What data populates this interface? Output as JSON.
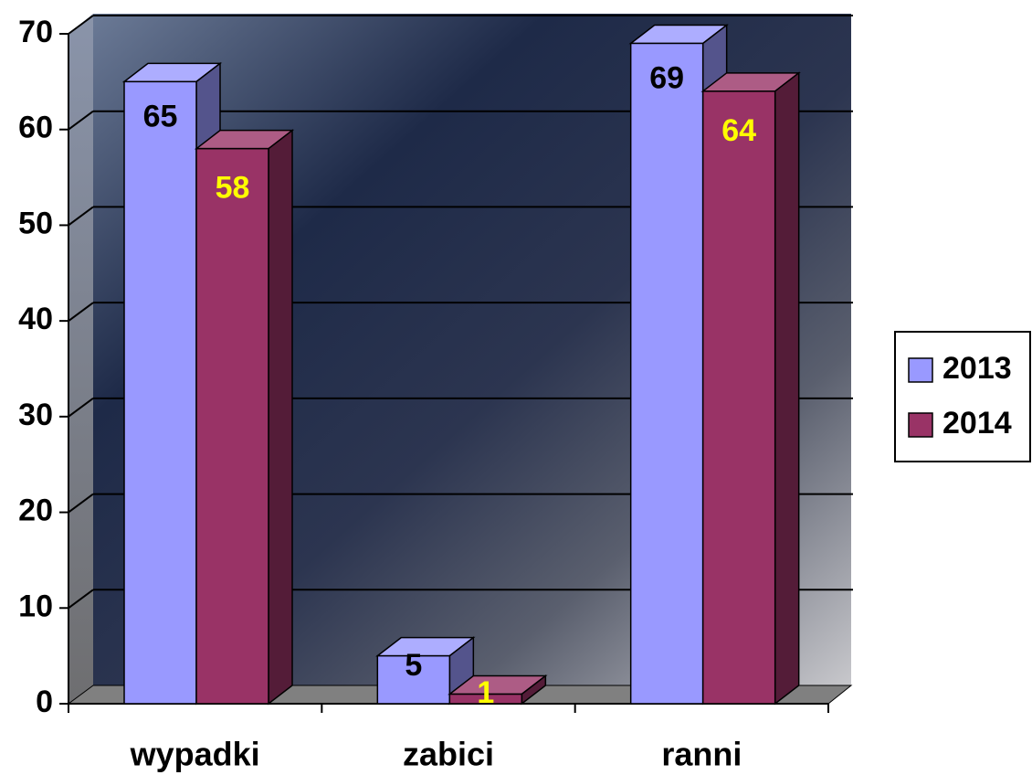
{
  "chart_data": {
    "type": "bar3d",
    "categories": [
      "wypadki",
      "zabici",
      "ranni"
    ],
    "series": [
      {
        "name": "2013",
        "color": "#9999ff",
        "label_color": "#000000",
        "values": [
          65,
          5,
          69
        ]
      },
      {
        "name": "2014",
        "color": "#993366",
        "label_color": "#ffff00",
        "values": [
          58,
          1,
          64
        ]
      }
    ],
    "ylim": [
      0,
      70
    ],
    "yticks": [
      0,
      10,
      20,
      30,
      40,
      50,
      60,
      70
    ],
    "grid": true,
    "legend": "right"
  }
}
